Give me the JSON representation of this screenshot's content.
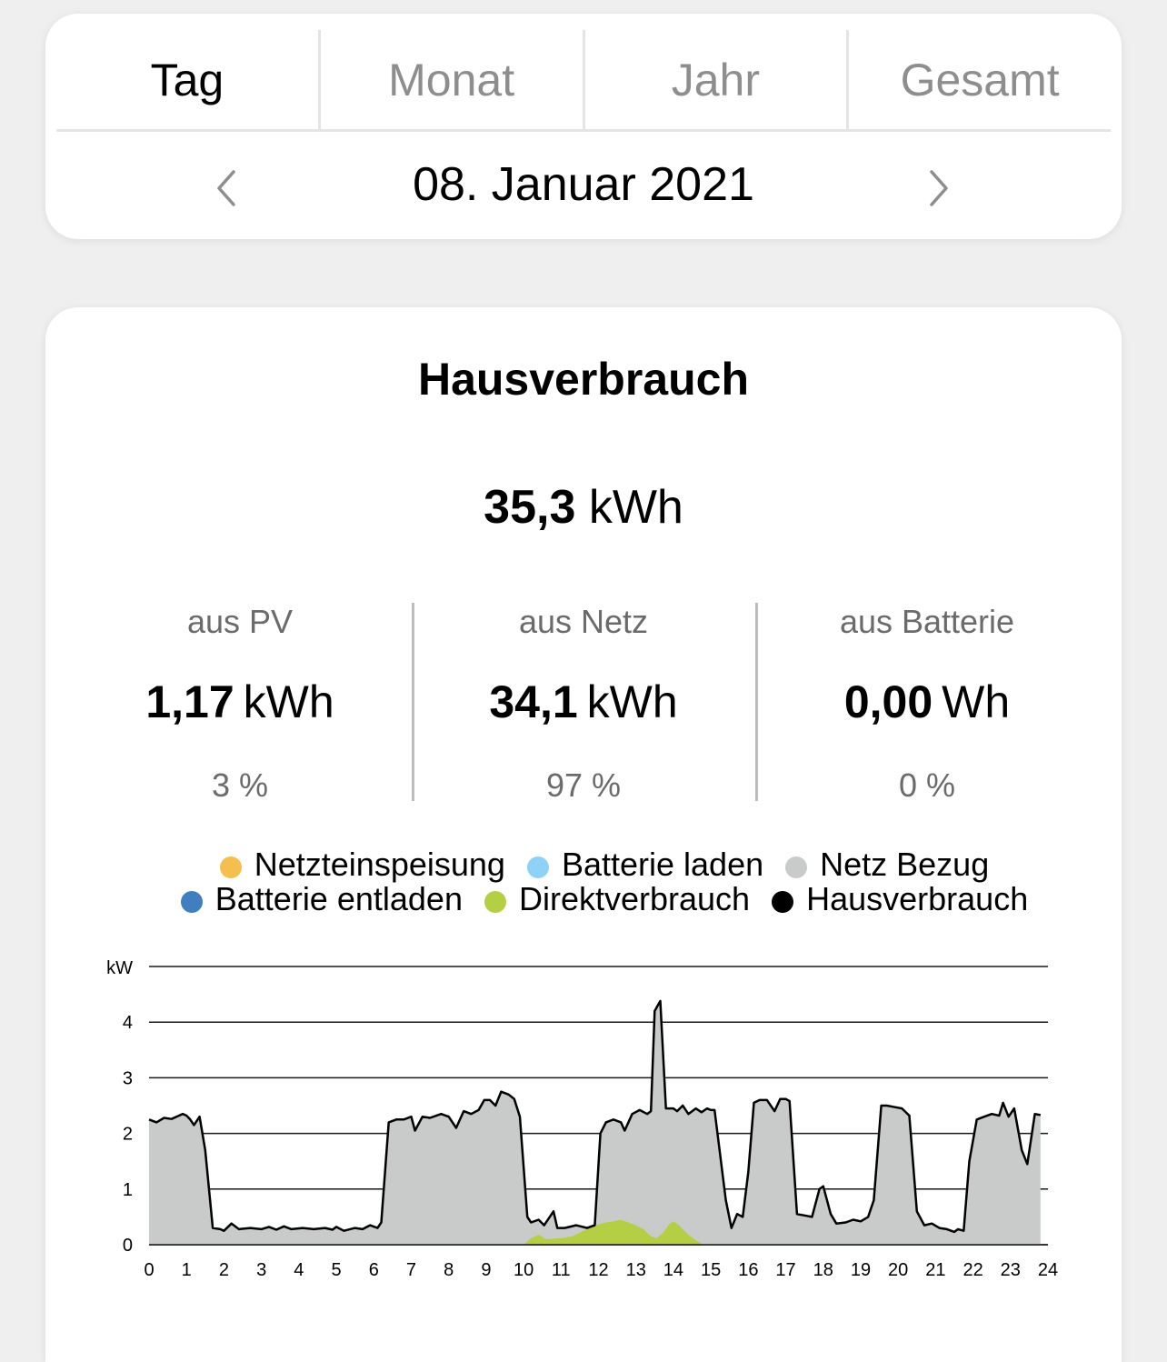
{
  "tabs": [
    {
      "label": "Tag",
      "active": true
    },
    {
      "label": "Monat",
      "active": false
    },
    {
      "label": "Jahr",
      "active": false
    },
    {
      "label": "Gesamt",
      "active": false
    }
  ],
  "date_nav": {
    "date": "08. Januar 2021",
    "prev_icon": "chevron-left-icon",
    "next_icon": "chevron-right-icon"
  },
  "usage": {
    "title": "Hausverbrauch",
    "total_value": "35,3",
    "total_unit": "kWh",
    "stats": [
      {
        "label": "aus PV",
        "value": "1,17",
        "unit": "kWh",
        "percent": "3 %"
      },
      {
        "label": "aus Netz",
        "value": "34,1",
        "unit": "kWh",
        "percent": "97 %"
      },
      {
        "label": "aus Batterie",
        "value": "0,00",
        "unit": "Wh",
        "percent": "0 %"
      }
    ]
  },
  "legend": [
    {
      "label": "Netzteinspeisung",
      "color": "#f5bf4f"
    },
    {
      "label": "Batterie laden",
      "color": "#8ed3f7"
    },
    {
      "label": "Netz Bezug",
      "color": "#c9cbcb"
    },
    {
      "label": "Batterie entladen",
      "color": "#3f7fbf"
    },
    {
      "label": "Direktverbrauch",
      "color": "#b5cf45"
    },
    {
      "label": "Hausverbrauch",
      "color": "#000000"
    }
  ],
  "chart_data": {
    "type": "area",
    "ylabel": "kW",
    "ylim": [
      0,
      5
    ],
    "yticks": [
      0,
      1,
      2,
      3,
      4
    ],
    "xlim": [
      0,
      24
    ],
    "xticks": [
      0,
      1,
      2,
      3,
      4,
      5,
      6,
      7,
      8,
      9,
      10,
      11,
      12,
      13,
      14,
      15,
      16,
      17,
      18,
      19,
      20,
      21,
      22,
      23,
      24
    ],
    "grid": true,
    "series": [
      {
        "name": "Hausverbrauch",
        "color": "#000000",
        "points": [
          [
            0,
            2.25
          ],
          [
            0.2,
            2.2
          ],
          [
            0.4,
            2.28
          ],
          [
            0.6,
            2.26
          ],
          [
            0.8,
            2.32
          ],
          [
            0.9,
            2.35
          ],
          [
            1.0,
            2.32
          ],
          [
            1.1,
            2.25
          ],
          [
            1.2,
            2.15
          ],
          [
            1.35,
            2.3
          ],
          [
            1.5,
            1.7
          ],
          [
            1.7,
            0.3
          ],
          [
            1.9,
            0.28
          ],
          [
            2.0,
            0.25
          ],
          [
            2.2,
            0.38
          ],
          [
            2.4,
            0.28
          ],
          [
            2.7,
            0.3
          ],
          [
            3.0,
            0.28
          ],
          [
            3.2,
            0.32
          ],
          [
            3.4,
            0.27
          ],
          [
            3.6,
            0.33
          ],
          [
            3.8,
            0.28
          ],
          [
            4.1,
            0.3
          ],
          [
            4.4,
            0.28
          ],
          [
            4.7,
            0.3
          ],
          [
            4.9,
            0.27
          ],
          [
            5.0,
            0.32
          ],
          [
            5.2,
            0.25
          ],
          [
            5.5,
            0.3
          ],
          [
            5.7,
            0.28
          ],
          [
            5.9,
            0.35
          ],
          [
            6.1,
            0.3
          ],
          [
            6.2,
            0.4
          ],
          [
            6.4,
            2.2
          ],
          [
            6.6,
            2.25
          ],
          [
            6.8,
            2.25
          ],
          [
            7.0,
            2.3
          ],
          [
            7.1,
            2.05
          ],
          [
            7.3,
            2.3
          ],
          [
            7.5,
            2.28
          ],
          [
            7.8,
            2.35
          ],
          [
            8.0,
            2.3
          ],
          [
            8.2,
            2.1
          ],
          [
            8.4,
            2.4
          ],
          [
            8.6,
            2.35
          ],
          [
            8.8,
            2.42
          ],
          [
            8.95,
            2.6
          ],
          [
            9.1,
            2.6
          ],
          [
            9.25,
            2.5
          ],
          [
            9.4,
            2.75
          ],
          [
            9.6,
            2.7
          ],
          [
            9.75,
            2.62
          ],
          [
            9.9,
            2.3
          ],
          [
            10.1,
            0.5
          ],
          [
            10.2,
            0.4
          ],
          [
            10.4,
            0.45
          ],
          [
            10.55,
            0.35
          ],
          [
            10.8,
            0.6
          ],
          [
            10.9,
            0.3
          ],
          [
            11.1,
            0.3
          ],
          [
            11.4,
            0.35
          ],
          [
            11.7,
            0.3
          ],
          [
            11.9,
            0.35
          ],
          [
            12.05,
            2.0
          ],
          [
            12.2,
            2.2
          ],
          [
            12.4,
            2.25
          ],
          [
            12.6,
            2.2
          ],
          [
            12.7,
            2.05
          ],
          [
            12.9,
            2.35
          ],
          [
            13.1,
            2.42
          ],
          [
            13.3,
            2.35
          ],
          [
            13.4,
            2.4
          ],
          [
            13.5,
            4.2
          ],
          [
            13.65,
            4.38
          ],
          [
            13.8,
            2.45
          ],
          [
            14.0,
            2.45
          ],
          [
            14.1,
            2.4
          ],
          [
            14.25,
            2.5
          ],
          [
            14.4,
            2.35
          ],
          [
            14.6,
            2.45
          ],
          [
            14.75,
            2.38
          ],
          [
            14.9,
            2.45
          ],
          [
            15.0,
            2.42
          ],
          [
            15.1,
            2.42
          ],
          [
            15.4,
            0.8
          ],
          [
            15.55,
            0.3
          ],
          [
            15.7,
            0.55
          ],
          [
            15.85,
            0.5
          ],
          [
            16.0,
            1.3
          ],
          [
            16.15,
            2.55
          ],
          [
            16.3,
            2.6
          ],
          [
            16.5,
            2.6
          ],
          [
            16.7,
            2.4
          ],
          [
            16.85,
            2.62
          ],
          [
            17.0,
            2.62
          ],
          [
            17.1,
            2.58
          ],
          [
            17.3,
            0.55
          ],
          [
            17.55,
            0.52
          ],
          [
            17.7,
            0.5
          ],
          [
            17.9,
            1.0
          ],
          [
            18.0,
            1.05
          ],
          [
            18.2,
            0.55
          ],
          [
            18.35,
            0.38
          ],
          [
            18.6,
            0.4
          ],
          [
            18.8,
            0.45
          ],
          [
            19.0,
            0.42
          ],
          [
            19.2,
            0.5
          ],
          [
            19.35,
            0.8
          ],
          [
            19.55,
            2.5
          ],
          [
            19.7,
            2.5
          ],
          [
            19.85,
            2.48
          ],
          [
            20.1,
            2.45
          ],
          [
            20.3,
            2.32
          ],
          [
            20.5,
            0.6
          ],
          [
            20.7,
            0.35
          ],
          [
            20.9,
            0.38
          ],
          [
            21.1,
            0.3
          ],
          [
            21.3,
            0.28
          ],
          [
            21.5,
            0.23
          ],
          [
            21.6,
            0.28
          ],
          [
            21.75,
            0.25
          ],
          [
            21.9,
            1.5
          ],
          [
            22.1,
            2.25
          ],
          [
            22.3,
            2.3
          ],
          [
            22.5,
            2.35
          ],
          [
            22.7,
            2.32
          ],
          [
            22.8,
            2.55
          ],
          [
            22.95,
            2.3
          ],
          [
            23.1,
            2.45
          ],
          [
            23.3,
            1.7
          ],
          [
            23.45,
            1.45
          ],
          [
            23.65,
            2.35
          ],
          [
            23.8,
            2.33
          ]
        ]
      },
      {
        "name": "Direktverbrauch",
        "color": "#b5cf45",
        "points": [
          [
            10.0,
            0
          ],
          [
            10.2,
            0.12
          ],
          [
            10.4,
            0.18
          ],
          [
            10.6,
            0.1
          ],
          [
            11.0,
            0.12
          ],
          [
            11.3,
            0.15
          ],
          [
            11.6,
            0.25
          ],
          [
            11.9,
            0.35
          ],
          [
            12.2,
            0.4
          ],
          [
            12.4,
            0.42
          ],
          [
            12.6,
            0.45
          ],
          [
            12.8,
            0.4
          ],
          [
            13.0,
            0.35
          ],
          [
            13.2,
            0.28
          ],
          [
            13.4,
            0.15
          ],
          [
            13.55,
            0.12
          ],
          [
            13.7,
            0.2
          ],
          [
            13.9,
            0.38
          ],
          [
            14.0,
            0.42
          ],
          [
            14.15,
            0.35
          ],
          [
            14.4,
            0.18
          ],
          [
            14.6,
            0.08
          ],
          [
            14.8,
            0
          ]
        ]
      }
    ]
  }
}
